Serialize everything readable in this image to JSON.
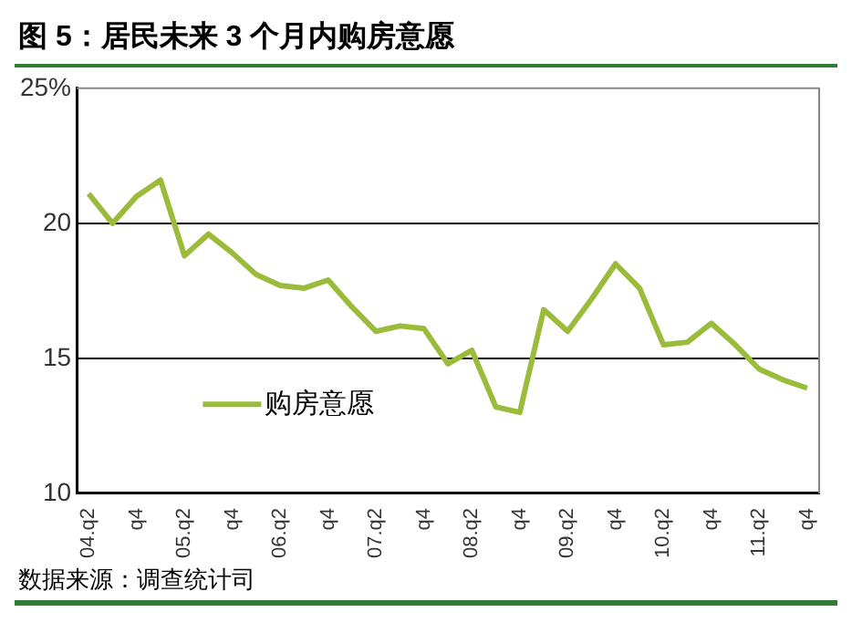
{
  "chart_data": {
    "type": "line",
    "title": "图 5：居民未来 3 个月内购房意愿",
    "annotations": [
      "数据来源：调查统计司"
    ],
    "categories": [
      "04.q2",
      null,
      "q4",
      null,
      "05.q2",
      null,
      "q4",
      null,
      "06.q2",
      null,
      "q4",
      null,
      "07.q2",
      null,
      "q4",
      null,
      "08.q2",
      null,
      "q4",
      null,
      "09.q2",
      null,
      "q4",
      null,
      "10.q2",
      null,
      "q4",
      null,
      "11.q2",
      null,
      "q4"
    ],
    "series": [
      {
        "name": "购房意愿",
        "color": "#9bbb3b",
        "values": [
          21.1,
          20.0,
          21.0,
          21.6,
          18.8,
          19.6,
          18.9,
          18.1,
          17.7,
          17.6,
          17.9,
          16.9,
          16.0,
          16.2,
          16.1,
          14.8,
          15.3,
          13.2,
          13.0,
          16.8,
          16.0,
          17.2,
          18.5,
          17.6,
          15.5,
          15.6,
          16.3,
          15.5,
          14.6,
          14.2,
          13.9
        ]
      }
    ],
    "ylim": [
      10,
      25
    ],
    "yticks": [
      10,
      15,
      20,
      {
        "value": 25,
        "label": "25%"
      }
    ],
    "grid": "y",
    "legend": "bottom left",
    "marker": "none",
    "line_style": "solid"
  }
}
